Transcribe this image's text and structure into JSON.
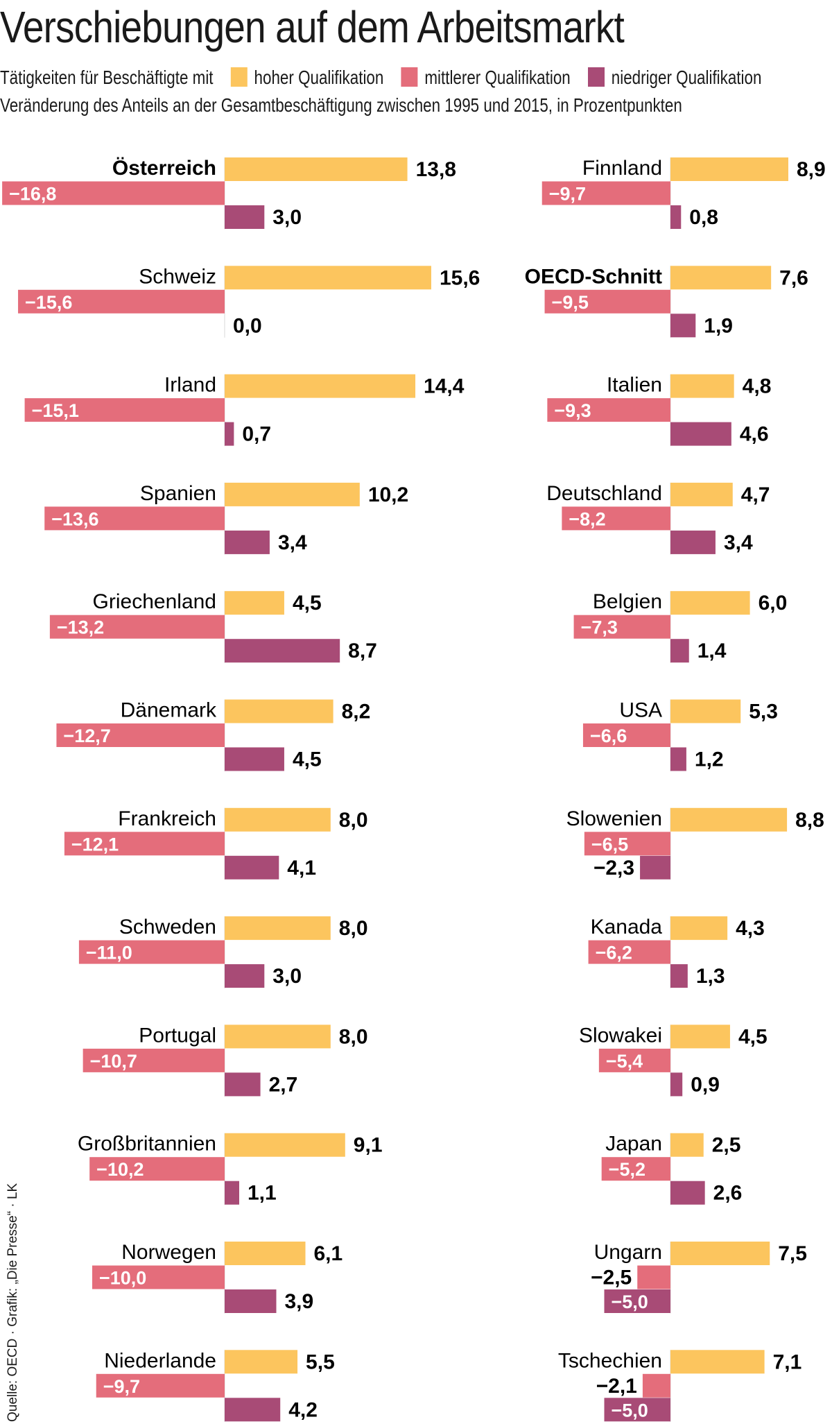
{
  "title": "Verschiebungen auf dem Arbeitsmarkt",
  "legend": {
    "intro": "Tätigkeiten für Beschäftigte mit",
    "items": [
      {
        "label": "hoher Qualifikation",
        "color": "#fcc55e"
      },
      {
        "label": "mittlerer Qualifikation",
        "color": "#e46d7b"
      },
      {
        "label": "niedriger Qualifikation",
        "color": "#a84b76"
      }
    ]
  },
  "subtitle": "Veränderung des Anteils an der Gesamtbeschäftigung zwischen 1995 und 2015, in Prozentpunkten",
  "source": "Quelle: OECD · Grafik: „Die Presse“ · LK",
  "chart_data": {
    "type": "bar",
    "orientation": "horizontal",
    "series": [
      {
        "name": "hoher Qualifikation",
        "color": "#fcc55e"
      },
      {
        "name": "mittlerer Qualifikation",
        "color": "#e46d7b"
      },
      {
        "name": "niedriger Qualifikation",
        "color": "#a84b76"
      }
    ],
    "countries": [
      {
        "name": "Österreich",
        "bold": true,
        "values": [
          13.8,
          -16.8,
          3.0
        ],
        "labels": [
          "13,8",
          "−16,8",
          "3,0"
        ]
      },
      {
        "name": "Schweiz",
        "values": [
          15.6,
          -15.6,
          0.0
        ],
        "labels": [
          "15,6",
          "−15,6",
          "0,0"
        ]
      },
      {
        "name": "Irland",
        "values": [
          14.4,
          -15.1,
          0.7
        ],
        "labels": [
          "14,4",
          "−15,1",
          "0,7"
        ]
      },
      {
        "name": "Spanien",
        "values": [
          10.2,
          -13.6,
          3.4
        ],
        "labels": [
          "10,2",
          "−13,6",
          "3,4"
        ]
      },
      {
        "name": "Griechenland",
        "values": [
          4.5,
          -13.2,
          8.7
        ],
        "labels": [
          "4,5",
          "−13,2",
          "8,7"
        ]
      },
      {
        "name": "Dänemark",
        "values": [
          8.2,
          -12.7,
          4.5
        ],
        "labels": [
          "8,2",
          "−12,7",
          "4,5"
        ]
      },
      {
        "name": "Frankreich",
        "values": [
          8.0,
          -12.1,
          4.1
        ],
        "labels": [
          "8,0",
          "−12,1",
          "4,1"
        ]
      },
      {
        "name": "Schweden",
        "values": [
          8.0,
          -11.0,
          3.0
        ],
        "labels": [
          "8,0",
          "−11,0",
          "3,0"
        ]
      },
      {
        "name": "Portugal",
        "values": [
          8.0,
          -10.7,
          2.7
        ],
        "labels": [
          "8,0",
          "−10,7",
          "2,7"
        ]
      },
      {
        "name": "Großbritannien",
        "values": [
          9.1,
          -10.2,
          1.1
        ],
        "labels": [
          "9,1",
          "−10,2",
          "1,1"
        ]
      },
      {
        "name": "Norwegen",
        "values": [
          6.1,
          -10.0,
          3.9
        ],
        "labels": [
          "6,1",
          "−10,0",
          "3,9"
        ]
      },
      {
        "name": "Niederlande",
        "values": [
          5.5,
          -9.7,
          4.2
        ],
        "labels": [
          "5,5",
          "−9,7",
          "4,2"
        ]
      },
      {
        "name": "Finnland",
        "values": [
          8.9,
          -9.7,
          0.8
        ],
        "labels": [
          "8,9",
          "−9,7",
          "0,8"
        ]
      },
      {
        "name": "OECD-Schnitt",
        "bold": true,
        "values": [
          7.6,
          -9.5,
          1.9
        ],
        "labels": [
          "7,6",
          "−9,5",
          "1,9"
        ]
      },
      {
        "name": "Italien",
        "values": [
          4.8,
          -9.3,
          4.6
        ],
        "labels": [
          "4,8",
          "−9,3",
          "4,6"
        ]
      },
      {
        "name": "Deutschland",
        "values": [
          4.7,
          -8.2,
          3.4
        ],
        "labels": [
          "4,7",
          "−8,2",
          "3,4"
        ]
      },
      {
        "name": "Belgien",
        "values": [
          6.0,
          -7.3,
          1.4
        ],
        "labels": [
          "6,0",
          "−7,3",
          "1,4"
        ]
      },
      {
        "name": "USA",
        "values": [
          5.3,
          -6.6,
          1.2
        ],
        "labels": [
          "5,3",
          "−6,6",
          "1,2"
        ]
      },
      {
        "name": "Slowenien",
        "values": [
          8.8,
          -6.5,
          -2.3
        ],
        "labels": [
          "8,8",
          "−6,5",
          "−2,3"
        ]
      },
      {
        "name": "Kanada",
        "values": [
          4.3,
          -6.2,
          1.3
        ],
        "labels": [
          "4,3",
          "−6,2",
          "1,3"
        ]
      },
      {
        "name": "Slowakei",
        "values": [
          4.5,
          -5.4,
          0.9
        ],
        "labels": [
          "4,5",
          "−5,4",
          "0,9"
        ]
      },
      {
        "name": "Japan",
        "values": [
          2.5,
          -5.2,
          2.6
        ],
        "labels": [
          "2,5",
          "−5,2",
          "2,6"
        ]
      },
      {
        "name": "Ungarn",
        "values": [
          7.5,
          -2.5,
          -5.0
        ],
        "labels": [
          "7,5",
          "−2,5",
          "−5,0"
        ]
      },
      {
        "name": "Tschechien",
        "values": [
          7.1,
          -2.1,
          -5.0
        ],
        "labels": [
          "7,1",
          "−2,1",
          "−5,0"
        ]
      }
    ]
  }
}
